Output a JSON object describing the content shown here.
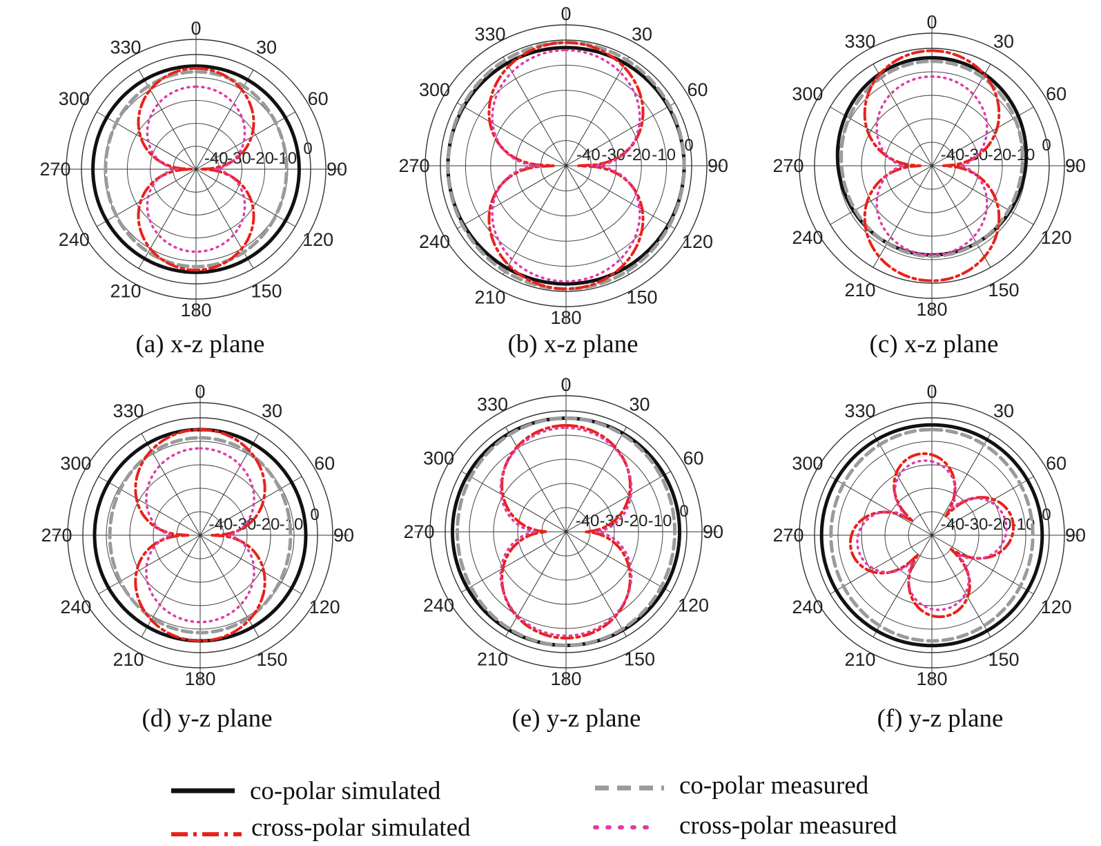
{
  "figure": {
    "legend": [
      {
        "label": "co-polar simulated",
        "color": "#111111",
        "style": "solid"
      },
      {
        "label": "co-polar measured",
        "color": "#9a9a9a",
        "style": "dashed"
      },
      {
        "label": "cross-polar simulated",
        "color": "#e8221b",
        "style": "dash-dot"
      },
      {
        "label": "cross-polar measured",
        "color": "#e23aa6",
        "style": "dotted"
      }
    ]
  },
  "chart_data": [
    {
      "type": "polar",
      "caption": "(a) x-z plane",
      "angle_labels": [
        "0",
        "30",
        "60",
        "90",
        "120",
        "150",
        "180",
        "210",
        "240",
        "270",
        "300",
        "330"
      ],
      "radial_labels": [
        "-40",
        "-30",
        "-20",
        "-10",
        "0"
      ],
      "rlim": [
        -50,
        0
      ],
      "grid": true,
      "series": [
        {
          "name": "co-polar simulated",
          "shape": "omni",
          "level": -5,
          "amp1": 0,
          "amp2": 0,
          "phase": 0
        },
        {
          "name": "co-polar measured",
          "shape": "omni",
          "level": -9,
          "amp1": 0,
          "amp2": 1.5,
          "phase": 0
        },
        {
          "name": "cross-polar simulated",
          "shape": "lobes",
          "peak": -6,
          "null": -48,
          "exp": 0.7
        },
        {
          "name": "cross-polar measured",
          "shape": "lobes",
          "peak": -14,
          "null": -42,
          "exp": 0.8
        }
      ]
    },
    {
      "type": "polar",
      "caption": "(b) x-z plane",
      "angle_labels": [
        "0",
        "30",
        "60",
        "90",
        "120",
        "150",
        "180",
        "210",
        "240",
        "270",
        "300",
        "330"
      ],
      "radial_labels": [
        "-40",
        "-30",
        "-20",
        "-10",
        "0"
      ],
      "rlim": [
        -50,
        0
      ],
      "grid": true,
      "series": [
        {
          "name": "co-polar simulated",
          "shape": "omni",
          "level": -3,
          "amp1": 0,
          "amp2": 0,
          "phase": 0
        },
        {
          "name": "co-polar measured",
          "shape": "omni",
          "level": -2,
          "amp1": 0,
          "amp2": 1,
          "phase": 0
        },
        {
          "name": "cross-polar simulated",
          "shape": "lobes",
          "peak": -1,
          "null": -45,
          "exp": 0.55
        },
        {
          "name": "cross-polar measured",
          "shape": "lobes",
          "peak": -4,
          "null": -40,
          "exp": 0.6
        }
      ]
    },
    {
      "type": "polar",
      "caption": "(c) x-z plane",
      "angle_labels": [
        "0",
        "30",
        "60",
        "90",
        "120",
        "150",
        "180",
        "210",
        "240",
        "270",
        "300",
        "330"
      ],
      "radial_labels": [
        "-40",
        "-30",
        "-20",
        "-10",
        "0"
      ],
      "rlim": [
        -50,
        0
      ],
      "grid": true,
      "series": [
        {
          "name": "co-polar simulated",
          "shape": "omni",
          "level": -9,
          "amp1": 4,
          "amp2": 1,
          "phase": 0
        },
        {
          "name": "co-polar measured",
          "shape": "omni",
          "level": -10,
          "amp1": 3,
          "amp2": 1.5,
          "phase": 0
        },
        {
          "name": "cross-polar simulated",
          "shape": "lobes",
          "peak": -1,
          "null": -45,
          "exp": 0.7
        },
        {
          "name": "cross-polar measured",
          "shape": "lobes",
          "peak": -12,
          "null": -38,
          "exp": 0.8
        }
      ]
    },
    {
      "type": "polar",
      "caption": "(d) y-z plane",
      "angle_labels": [
        "0",
        "30",
        "60",
        "90",
        "120",
        "150",
        "180",
        "210",
        "240",
        "270",
        "300",
        "330"
      ],
      "radial_labels": [
        "-40",
        "-30",
        "-20",
        "-10",
        "0"
      ],
      "rlim": [
        -50,
        0
      ],
      "grid": true,
      "series": [
        {
          "name": "co-polar simulated",
          "shape": "omni",
          "level": -5,
          "amp1": 0,
          "amp2": 0,
          "phase": 0
        },
        {
          "name": "co-polar measured",
          "shape": "omni",
          "level": -10,
          "amp1": 0,
          "amp2": 1.5,
          "phase": 0
        },
        {
          "name": "cross-polar simulated",
          "shape": "lobes",
          "peak": -5,
          "null": -45,
          "exp": 0.6
        },
        {
          "name": "cross-polar measured",
          "shape": "lobes",
          "peak": -13,
          "null": -38,
          "exp": 0.8
        }
      ]
    },
    {
      "type": "polar",
      "caption": "(e) y-z plane",
      "angle_labels": [
        "0",
        "30",
        "60",
        "90",
        "120",
        "150",
        "180",
        "210",
        "240",
        "270",
        "300",
        "330"
      ],
      "radial_labels": [
        "-40",
        "-30",
        "-20",
        "-10",
        "0"
      ],
      "rlim": [
        -50,
        0
      ],
      "grid": true,
      "series": [
        {
          "name": "co-polar simulated",
          "shape": "omni",
          "level": -3,
          "amp1": 0,
          "amp2": 0,
          "phase": 0
        },
        {
          "name": "co-polar measured",
          "shape": "omni",
          "level": -4,
          "amp1": 0,
          "amp2": 1,
          "phase": 0
        },
        {
          "name": "cross-polar simulated",
          "shape": "lobes",
          "peak": -6,
          "null": -42,
          "exp": 0.7
        },
        {
          "name": "cross-polar measured",
          "shape": "lobes",
          "peak": -7,
          "null": -38,
          "exp": 0.7
        }
      ]
    },
    {
      "type": "polar",
      "caption": "(f) y-z plane",
      "angle_labels": [
        "0",
        "30",
        "60",
        "90",
        "120",
        "150",
        "180",
        "210",
        "240",
        "270",
        "300",
        "330"
      ],
      "radial_labels": [
        "-40",
        "-30",
        "-20",
        "-10",
        "0"
      ],
      "rlim": [
        -50,
        0
      ],
      "grid": true,
      "series": [
        {
          "name": "co-polar simulated",
          "shape": "omni",
          "level": -3,
          "amp1": 0,
          "amp2": 0,
          "phase": 0
        },
        {
          "name": "co-polar measured",
          "shape": "omni",
          "level": -6,
          "amp1": 0,
          "amp2": 1,
          "phase": 0
        },
        {
          "name": "cross-polar simulated",
          "shape": "petals",
          "peak": -15,
          "null": -42,
          "count": 4
        },
        {
          "name": "cross-polar measured",
          "shape": "petals",
          "peak": -18,
          "null": -38,
          "count": 4
        }
      ]
    }
  ]
}
